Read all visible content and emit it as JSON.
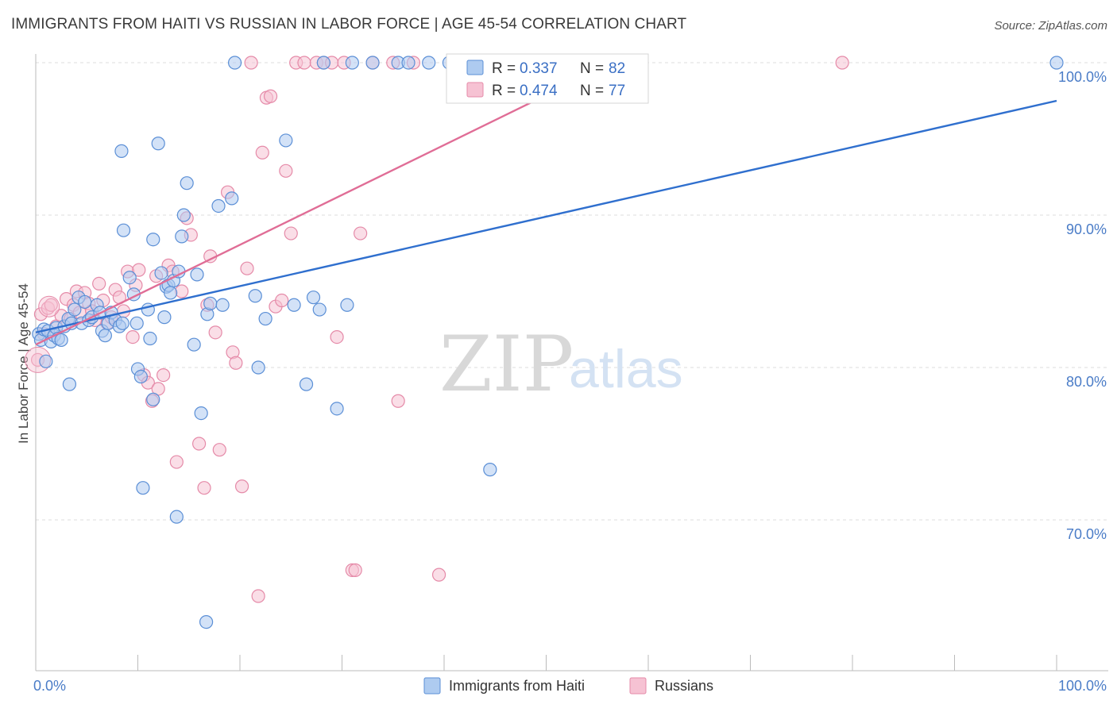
{
  "title": "IMMIGRANTS FROM HAITI VS RUSSIAN IN LABOR FORCE | AGE 45-54 CORRELATION CHART",
  "source": "Source: ZipAtlas.com",
  "watermark": {
    "zip": "ZIP",
    "atlas": "atlas"
  },
  "colors": {
    "blue_fill": "#aecbf0",
    "blue_stroke": "#5b8fd6",
    "blue_line": "#2f6fce",
    "pink_fill": "#f6c2d3",
    "pink_stroke": "#e58aa8",
    "pink_line": "#e06d96",
    "grid": "#dddddd",
    "axis": "#bbbbbb"
  },
  "legend": {
    "r_label": "R =",
    "n_label": "N =",
    "series": [
      {
        "r": "0.337",
        "n": "82"
      },
      {
        "r": "0.474",
        "n": "77"
      }
    ]
  },
  "bottom_legend": [
    "Immigrants from Haiti",
    "Russians"
  ],
  "chart_data": {
    "type": "scatter",
    "title": "IMMIGRANTS FROM HAITI VS RUSSIAN IN LABOR FORCE | AGE 45-54 CORRELATION CHART",
    "xlabel": "",
    "ylabel": "In Labor Force | Age 45-54",
    "xlim": [
      0,
      100
    ],
    "ylim": [
      60,
      101
    ],
    "x_tick_labels": [
      "0.0%",
      "100.0%"
    ],
    "y_ticks": [
      70,
      80,
      90,
      100
    ],
    "y_tick_labels": [
      "70.0%",
      "80.0%",
      "90.0%",
      "100.0%"
    ],
    "grid": true,
    "legend_position": "top-center",
    "series": [
      {
        "name": "Immigrants from Haiti",
        "r": 0.337,
        "n": 82,
        "trend": {
          "x0": 0,
          "y0": 82.3,
          "x1": 100,
          "y1": 97.5
        },
        "points": [
          [
            0.3,
            82.2
          ],
          [
            0.5,
            81.8
          ],
          [
            0.8,
            82.5
          ],
          [
            1.2,
            82.4
          ],
          [
            1.5,
            81.7
          ],
          [
            1.8,
            82.1
          ],
          [
            2.0,
            82.6
          ],
          [
            2.2,
            81.9
          ],
          [
            2.5,
            81.8
          ],
          [
            2.8,
            82.7
          ],
          [
            3.2,
            83.2
          ],
          [
            3.5,
            82.9
          ],
          [
            3.8,
            83.8
          ],
          [
            4.2,
            84.6
          ],
          [
            4.5,
            82.9
          ],
          [
            4.8,
            84.3
          ],
          [
            5.2,
            83.1
          ],
          [
            5.5,
            83.3
          ],
          [
            6.0,
            84.1
          ],
          [
            6.3,
            83.6
          ],
          [
            6.5,
            82.4
          ],
          [
            6.8,
            82.1
          ],
          [
            7.1,
            82.9
          ],
          [
            7.4,
            83.6
          ],
          [
            7.8,
            83.1
          ],
          [
            8.2,
            82.7
          ],
          [
            8.5,
            82.9
          ],
          [
            1.0,
            80.4
          ],
          [
            3.3,
            78.9
          ],
          [
            8.6,
            89.0
          ],
          [
            8.4,
            94.2
          ],
          [
            9.2,
            85.9
          ],
          [
            9.6,
            84.8
          ],
          [
            9.9,
            82.9
          ],
          [
            10.0,
            79.9
          ],
          [
            10.3,
            79.4
          ],
          [
            10.5,
            72.1
          ],
          [
            11.0,
            83.8
          ],
          [
            11.2,
            81.9
          ],
          [
            11.5,
            77.9
          ],
          [
            11.5,
            88.4
          ],
          [
            12.0,
            94.7
          ],
          [
            12.3,
            86.2
          ],
          [
            12.6,
            83.3
          ],
          [
            12.8,
            85.3
          ],
          [
            13.0,
            85.4
          ],
          [
            13.5,
            85.7
          ],
          [
            13.8,
            70.2
          ],
          [
            14.0,
            86.3
          ],
          [
            14.3,
            88.6
          ],
          [
            14.5,
            90.0
          ],
          [
            14.8,
            92.1
          ],
          [
            13.2,
            84.9
          ],
          [
            15.5,
            81.5
          ],
          [
            15.8,
            86.1
          ],
          [
            16.2,
            77.0
          ],
          [
            16.8,
            83.5
          ],
          [
            17.1,
            84.2
          ],
          [
            16.7,
            63.3
          ],
          [
            17.9,
            90.6
          ],
          [
            18.3,
            84.1
          ],
          [
            19.2,
            91.1
          ],
          [
            19.5,
            100
          ],
          [
            21.5,
            84.7
          ],
          [
            21.8,
            80.0
          ],
          [
            22.5,
            83.2
          ],
          [
            24.5,
            94.9
          ],
          [
            25.3,
            84.1
          ],
          [
            26.5,
            78.9
          ],
          [
            27.2,
            84.6
          ],
          [
            27.8,
            83.8
          ],
          [
            28.2,
            100
          ],
          [
            29.5,
            77.3
          ],
          [
            30.5,
            84.1
          ],
          [
            31.0,
            100
          ],
          [
            33.0,
            100
          ],
          [
            35.5,
            100
          ],
          [
            36.5,
            100
          ],
          [
            38.5,
            100
          ],
          [
            40.5,
            100
          ],
          [
            44.5,
            73.3
          ],
          [
            100,
            100
          ]
        ]
      },
      {
        "name": "Russians",
        "r": 0.474,
        "n": 77,
        "trend": {
          "x0": 0,
          "y0": 81.5,
          "x1": 56.5,
          "y1": 100
        },
        "points": [
          [
            0.2,
            80.5
          ],
          [
            0.5,
            83.5
          ],
          [
            0.8,
            82.2
          ],
          [
            1.2,
            83.9
          ],
          [
            1.5,
            84.1
          ],
          [
            2.0,
            82.7
          ],
          [
            2.5,
            83.4
          ],
          [
            3.0,
            84.5
          ],
          [
            3.4,
            83.2
          ],
          [
            3.7,
            84.1
          ],
          [
            4.0,
            85.0
          ],
          [
            4.3,
            83.6
          ],
          [
            4.8,
            84.9
          ],
          [
            5.2,
            84.2
          ],
          [
            5.5,
            83.7
          ],
          [
            5.8,
            83.1
          ],
          [
            6.2,
            85.5
          ],
          [
            6.6,
            84.4
          ],
          [
            7.0,
            82.9
          ],
          [
            7.4,
            83.3
          ],
          [
            7.8,
            85.1
          ],
          [
            8.2,
            84.6
          ],
          [
            8.6,
            83.7
          ],
          [
            9.0,
            86.3
          ],
          [
            9.5,
            82.0
          ],
          [
            9.8,
            85.4
          ],
          [
            10.1,
            86.4
          ],
          [
            10.6,
            79.5
          ],
          [
            11.0,
            79.0
          ],
          [
            11.4,
            77.8
          ],
          [
            11.8,
            86.0
          ],
          [
            12.0,
            78.6
          ],
          [
            12.5,
            79.5
          ],
          [
            13.0,
            86.7
          ],
          [
            13.4,
            86.3
          ],
          [
            13.8,
            73.8
          ],
          [
            14.3,
            85.0
          ],
          [
            14.8,
            89.8
          ],
          [
            15.2,
            88.7
          ],
          [
            16.0,
            75.0
          ],
          [
            16.5,
            72.1
          ],
          [
            16.8,
            84.1
          ],
          [
            17.1,
            87.3
          ],
          [
            17.6,
            82.3
          ],
          [
            18.0,
            74.6
          ],
          [
            18.8,
            91.5
          ],
          [
            19.3,
            81.0
          ],
          [
            19.6,
            80.3
          ],
          [
            20.2,
            72.2
          ],
          [
            20.7,
            86.5
          ],
          [
            21.1,
            100
          ],
          [
            21.8,
            65.0
          ],
          [
            22.2,
            94.1
          ],
          [
            22.6,
            97.7
          ],
          [
            23.0,
            97.8
          ],
          [
            23.5,
            84.0
          ],
          [
            24.1,
            84.4
          ],
          [
            24.5,
            92.9
          ],
          [
            25.0,
            88.8
          ],
          [
            25.5,
            100
          ],
          [
            26.3,
            100
          ],
          [
            27.5,
            100
          ],
          [
            28.2,
            100
          ],
          [
            29.0,
            100
          ],
          [
            29.5,
            82.0
          ],
          [
            30.2,
            100
          ],
          [
            31.0,
            66.7
          ],
          [
            31.3,
            66.7
          ],
          [
            31.8,
            88.8
          ],
          [
            33.0,
            100
          ],
          [
            35.0,
            100
          ],
          [
            35.5,
            77.8
          ],
          [
            37.0,
            100
          ],
          [
            39.5,
            66.4
          ],
          [
            42.0,
            100
          ],
          [
            46.0,
            100
          ],
          [
            79.0,
            100
          ]
        ]
      }
    ]
  }
}
